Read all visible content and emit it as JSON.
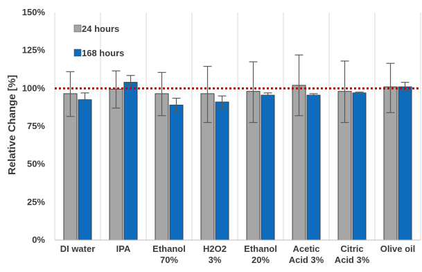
{
  "chart_data": {
    "type": "bar",
    "ylabel": "Relative Change [%]",
    "ylim": [
      0,
      150
    ],
    "yticks": [
      0,
      25,
      50,
      75,
      100,
      125,
      150
    ],
    "ytick_labels": [
      "0%",
      "25%",
      "50%",
      "75%",
      "100%",
      "125%",
      "150%"
    ],
    "grid": "vertical category separators",
    "legend_position": "top-left, inside plot",
    "categories": [
      [
        "DI water"
      ],
      [
        "IPA"
      ],
      [
        "Ethanol",
        "70%"
      ],
      [
        "H2O2",
        "3%"
      ],
      [
        "Ethanol",
        "20%"
      ],
      [
        "Acetic",
        "Acid 3%"
      ],
      [
        "Citric",
        "Acid 3%"
      ],
      [
        "Olive oil"
      ]
    ],
    "series": [
      {
        "name": "24 hours",
        "color": "#a6a6a6",
        "values": [
          96.5,
          99.5,
          96.5,
          96.5,
          98,
          102,
          98,
          101
        ],
        "error_low": [
          81.5,
          87,
          82,
          77.5,
          77.5,
          82,
          77.5,
          84
        ],
        "error_high": [
          111,
          111.5,
          110.5,
          114.5,
          117.5,
          122,
          118,
          116.5
        ]
      },
      {
        "name": "168 hours",
        "color": "#0f6cbd",
        "values": [
          92.5,
          104,
          89,
          91,
          95.5,
          95.5,
          97,
          101
        ],
        "error_low": [
          92.5,
          101,
          84.5,
          86.5,
          95.5,
          95.5,
          97,
          98.5
        ],
        "error_high": [
          97,
          108.5,
          93.5,
          95,
          97,
          96.5,
          97.5,
          104
        ]
      }
    ],
    "reference_line": {
      "value": 100,
      "color": "#d40000",
      "style": "dotted"
    }
  }
}
